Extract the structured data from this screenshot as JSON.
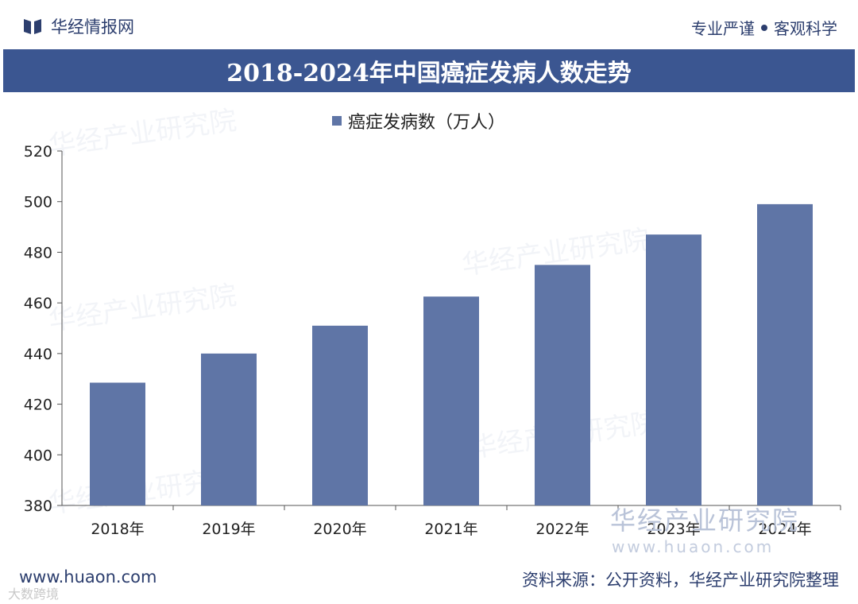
{
  "header": {
    "brand_name": "华经情报网",
    "slogan_left": "专业严谨",
    "slogan_right": "客观科学"
  },
  "watermarks": {
    "text": "华经产业研究院",
    "url": "www.huaon.com"
  },
  "footer": {
    "url": "www.huaon.com",
    "source": "资料来源：公开资料，华经产业研究院整理",
    "corner_mark": "大数跨境"
  },
  "colors": {
    "bar": "#5f75a6",
    "title_band": "#3b5691",
    "brand": "#2c3e6e"
  },
  "chart_data": {
    "type": "bar",
    "title": "2018-2024年中国癌症发病人数走势",
    "legend": "癌症发病数（万人）",
    "categories": [
      "2018年",
      "2019年",
      "2020年",
      "2021年",
      "2022年",
      "2023年",
      "2024年"
    ],
    "values": [
      428.5,
      440,
      451,
      462.5,
      475,
      487,
      499
    ],
    "ylim": [
      380,
      520
    ],
    "yticks": [
      380,
      400,
      420,
      440,
      460,
      480,
      500,
      520
    ],
    "xlabel": "",
    "ylabel": "",
    "grid": false
  }
}
